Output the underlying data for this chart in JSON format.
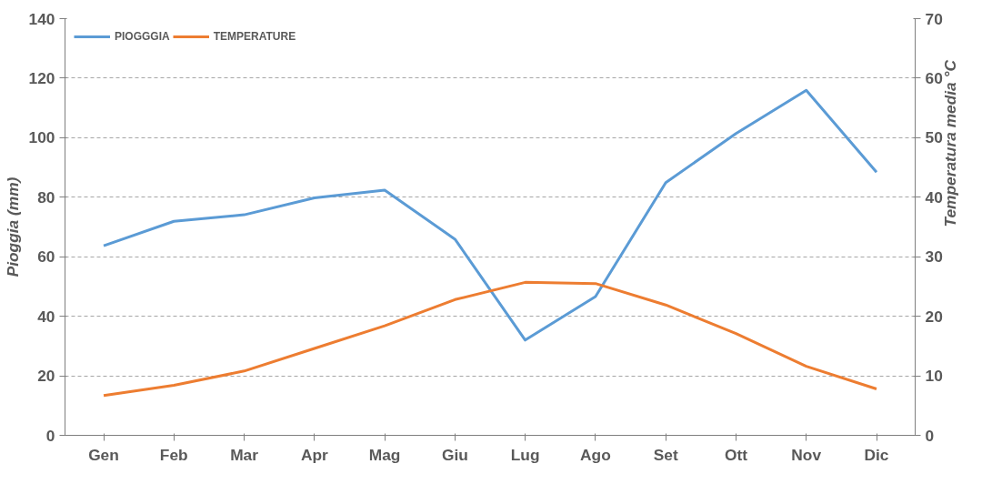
{
  "chart_data": {
    "type": "line",
    "ylabel": "Pioggia (mm)",
    "y2label": "Temperatura media °C",
    "categories": [
      "Gen",
      "Feb",
      "Mar",
      "Apr",
      "Mag",
      "Giu",
      "Lug",
      "Ago",
      "Set",
      "Ott",
      "Nov",
      "Dic"
    ],
    "series": [
      {
        "name": "PIOGGGIA",
        "color": "#5b9bd5",
        "values": [
          63.7,
          71.9,
          74.1,
          79.8,
          82.4,
          65.9,
          32,
          46.6,
          84.9,
          101.4,
          115.9,
          88.4
        ]
      },
      {
        "name": "TEMPERATURE",
        "color": "#ed7d31",
        "axis": "y2",
        "values": [
          6.7,
          8.4,
          10.8,
          14.6,
          18.4,
          22.8,
          25.7,
          25.5,
          21.9,
          17.1,
          11.6,
          7.8
        ]
      }
    ],
    "ylim": [
      0,
      140
    ],
    "yticks": [
      0,
      20,
      40,
      60,
      80,
      100,
      120,
      140
    ],
    "y2lim": [
      0,
      70
    ],
    "y2ticks": [
      0,
      10,
      20,
      30,
      40,
      50,
      60,
      70
    ],
    "grid": "y",
    "legend": "top left",
    "marker": "none",
    "line_style": "solid"
  }
}
